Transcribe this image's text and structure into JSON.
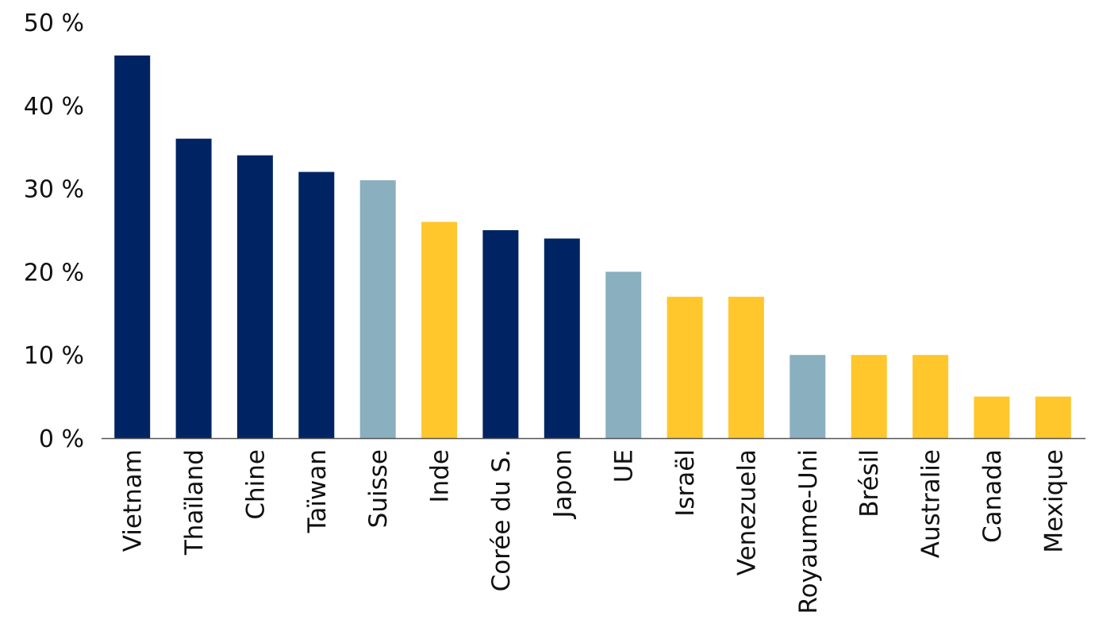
{
  "chart_data": {
    "type": "bar",
    "categories": [
      "Vietnam",
      "Thaïland",
      "Chine",
      "Taïwan",
      "Suisse",
      "Inde",
      "Corée du S.",
      "Japon",
      "UE",
      "Israël",
      "Venezuela",
      "Royaume-Uni",
      "Brésil",
      "Australie",
      "Canada",
      "Mexique"
    ],
    "values": [
      46,
      36,
      34,
      32,
      31,
      26,
      25,
      24,
      20,
      17,
      17,
      10,
      10,
      10,
      5,
      5
    ],
    "bar_color_keys": [
      "navy",
      "navy",
      "navy",
      "navy",
      "lightblue",
      "yellow",
      "navy",
      "navy",
      "lightblue",
      "yellow",
      "yellow",
      "lightblue",
      "yellow",
      "yellow",
      "yellow",
      "yellow"
    ],
    "colors": {
      "navy": "#002463",
      "lightblue": "#8aafbf",
      "yellow": "#ffc72c"
    },
    "yticks": [
      {
        "value": 0,
        "label": "0 %"
      },
      {
        "value": 10,
        "label": "10 %"
      },
      {
        "value": 20,
        "label": "20 %"
      },
      {
        "value": 30,
        "label": "30 %"
      },
      {
        "value": 40,
        "label": "40 %"
      },
      {
        "value": 50,
        "label": "50 %"
      }
    ],
    "ylim": [
      0,
      50
    ],
    "grid": false,
    "axis_color": "#555555",
    "title": "",
    "xlabel": "",
    "ylabel": ""
  }
}
